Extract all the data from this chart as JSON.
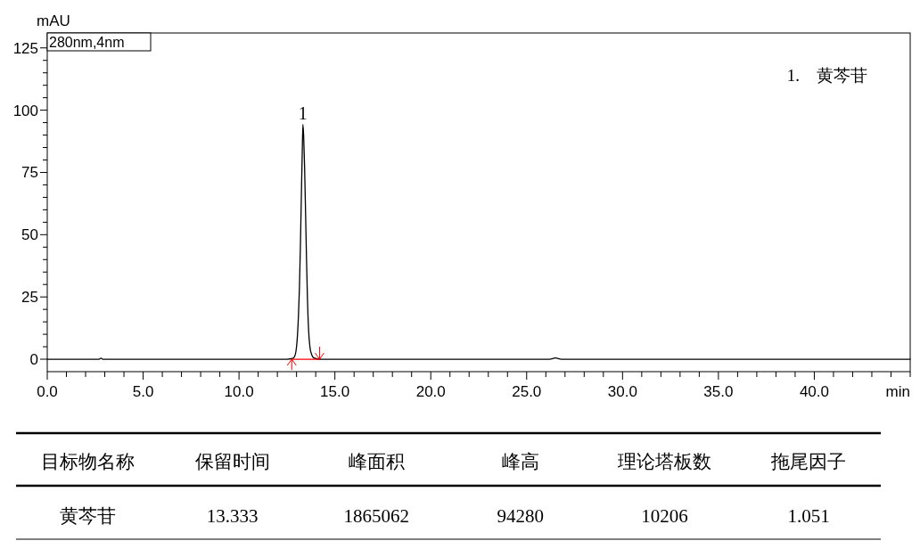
{
  "chart_data": [
    {
      "type": "line",
      "xlabel": "min",
      "ylabel": "mAU",
      "annotations": [
        "280nm,4nm",
        {
          "text": "1",
          "x": 13.333,
          "y": 94.3
        },
        "1.    黄芩苷"
      ],
      "xlim": [
        0,
        45
      ],
      "ylim": [
        -5,
        131
      ],
      "xticks": [
        {
          "value": 0,
          "label": "0.0"
        },
        {
          "value": 1,
          "label": null
        },
        {
          "value": 2,
          "label": null
        },
        {
          "value": 3,
          "label": null
        },
        {
          "value": 4,
          "label": null
        },
        {
          "value": 5,
          "label": "5.0"
        },
        {
          "value": 6,
          "label": null
        },
        {
          "value": 7,
          "label": null
        },
        {
          "value": 8,
          "label": null
        },
        {
          "value": 9,
          "label": null
        },
        {
          "value": 10,
          "label": "10.0"
        },
        {
          "value": 11,
          "label": null
        },
        {
          "value": 12,
          "label": null
        },
        {
          "value": 13,
          "label": null
        },
        {
          "value": 14,
          "label": null
        },
        {
          "value": 15,
          "label": "15.0"
        },
        {
          "value": 16,
          "label": null
        },
        {
          "value": 17,
          "label": null
        },
        {
          "value": 18,
          "label": null
        },
        {
          "value": 19,
          "label": null
        },
        {
          "value": 20,
          "label": "20.0"
        },
        {
          "value": 21,
          "label": null
        },
        {
          "value": 22,
          "label": null
        },
        {
          "value": 23,
          "label": null
        },
        {
          "value": 24,
          "label": null
        },
        {
          "value": 25,
          "label": "25.0"
        },
        {
          "value": 26,
          "label": null
        },
        {
          "value": 27,
          "label": null
        },
        {
          "value": 28,
          "label": null
        },
        {
          "value": 29,
          "label": null
        },
        {
          "value": 30,
          "label": "30.0"
        },
        {
          "value": 31,
          "label": null
        },
        {
          "value": 32,
          "label": null
        },
        {
          "value": 33,
          "label": null
        },
        {
          "value": 34,
          "label": null
        },
        {
          "value": 35,
          "label": "35.0"
        },
        {
          "value": 36,
          "label": null
        },
        {
          "value": 37,
          "label": null
        },
        {
          "value": 38,
          "label": null
        },
        {
          "value": 39,
          "label": null
        },
        {
          "value": 40,
          "label": "40.0"
        },
        {
          "value": 41,
          "label": null
        },
        {
          "value": 42,
          "label": null
        },
        {
          "value": 43,
          "label": null
        },
        {
          "value": 44,
          "label": null
        },
        {
          "value": 45,
          "label": null
        }
      ],
      "yticks": [
        0,
        {
          "value": 5,
          "label": null
        },
        {
          "value": 10,
          "label": null
        },
        {
          "value": 15,
          "label": null
        },
        {
          "value": 20,
          "label": null
        },
        25,
        {
          "value": 30,
          "label": null
        },
        {
          "value": 35,
          "label": null
        },
        {
          "value": 40,
          "label": null
        },
        {
          "value": 45,
          "label": null
        },
        50,
        {
          "value": 55,
          "label": null
        },
        {
          "value": 60,
          "label": null
        },
        {
          "value": 65,
          "label": null
        },
        {
          "value": 70,
          "label": null
        },
        75,
        {
          "value": 80,
          "label": null
        },
        {
          "value": 85,
          "label": null
        },
        {
          "value": 90,
          "label": null
        },
        {
          "value": 95,
          "label": null
        },
        100,
        {
          "value": 105,
          "label": null
        },
        {
          "value": 110,
          "label": null
        },
        {
          "value": 115,
          "label": null
        },
        {
          "value": 120,
          "label": null
        },
        125
      ],
      "grid": false,
      "series": [
        {
          "color": "#000000",
          "x": [
            0,
            2.7,
            2.8,
            2.9,
            8,
            12.5,
            12.8,
            12.9,
            13.0,
            13.05,
            13.1,
            13.15,
            13.2,
            13.25,
            13.3,
            13.333,
            13.37,
            13.42,
            13.47,
            13.52,
            13.57,
            13.63,
            13.7,
            13.8,
            13.9,
            14.1,
            14.3,
            20,
            26.2,
            26.5,
            26.8,
            35,
            45
          ],
          "values": [
            0,
            0,
            0.4,
            0,
            0,
            0,
            0.3,
            1.1,
            5.0,
            9.8,
            17.5,
            28.5,
            45.0,
            65.0,
            84.0,
            94.3,
            90.0,
            77.0,
            59.0,
            40.0,
            24.0,
            11.5,
            4.8,
            1.6,
            0.5,
            0.1,
            0,
            0,
            0,
            0.5,
            0,
            0,
            0
          ]
        },
        {
          "color": "#ff0000",
          "x": [
            12.75,
            14.2
          ],
          "values": [
            0,
            0
          ]
        }
      ]
    },
    {
      "type": "other",
      "categories": [
        "目标物名称",
        "保留时间",
        "峰面积",
        "峰高",
        "理论塔板数",
        "拖尾因子"
      ],
      "cell_labels": [
        [
          "黄芩苷",
          "13.333",
          "1865062",
          "94280",
          "10206",
          "1.051"
        ]
      ]
    }
  ]
}
